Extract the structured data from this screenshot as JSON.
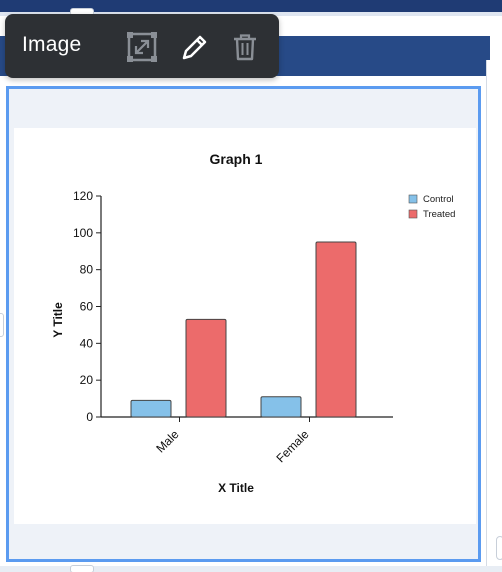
{
  "toolbar": {
    "title": "Image",
    "icons": {
      "resize": "resize-icon",
      "edit": "pencil-icon",
      "delete": "trash-icon"
    }
  },
  "colors": {
    "navy": "#1f3b74",
    "selection": "#5b9bf0",
    "toolbar_bg": "#2d3034",
    "control": "#85c1e9",
    "treated": "#ec6b6b"
  },
  "chart_data": {
    "type": "bar",
    "title": "Graph 1",
    "xlabel": "X Title",
    "ylabel": "Y Title",
    "categories": [
      "Male",
      "Female"
    ],
    "series": [
      {
        "name": "Control",
        "values": [
          9,
          11
        ],
        "color": "#85c1e9"
      },
      {
        "name": "Treated",
        "values": [
          53,
          95
        ],
        "color": "#ec6b6b"
      }
    ],
    "ylim": [
      0,
      120
    ],
    "yticks": [
      0,
      20,
      40,
      60,
      80,
      100,
      120
    ],
    "grid": false,
    "legend": "top-right"
  }
}
